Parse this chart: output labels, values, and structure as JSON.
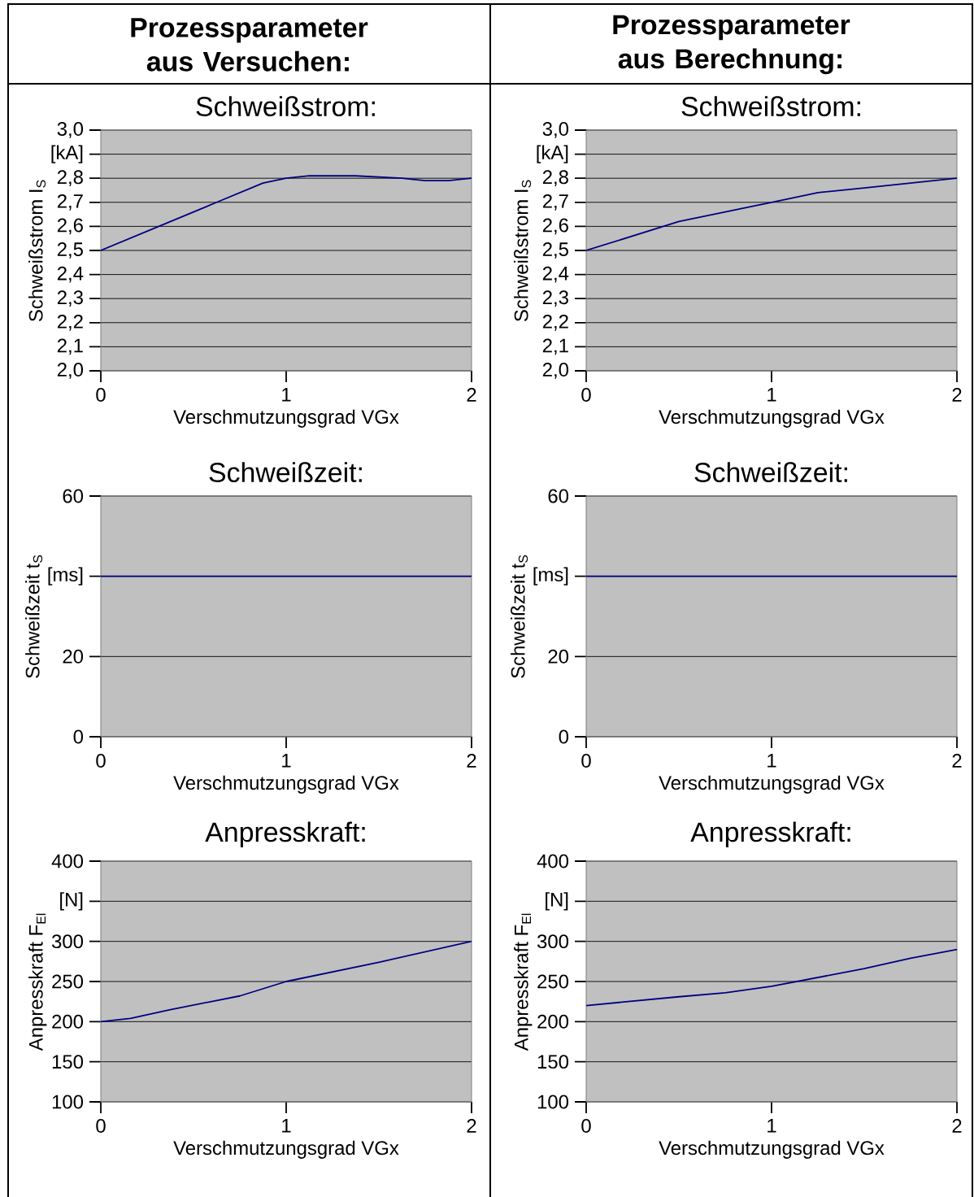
{
  "chart_data": [
    {
      "type": "line",
      "annotations": [
        "Prozessparameter aus Versuchen:"
      ],
      "title": "Schweißstrom:",
      "xlabel": "Verschmutzungsgrad VGx",
      "ylabel": "Schweißstrom I$_{S}$",
      "xlim": [
        0,
        2
      ],
      "xticks": [
        0,
        1,
        2
      ],
      "ylim": [
        2.0,
        3.0
      ],
      "yticks": [
        {
          "value": 2.0,
          "label": "2,0"
        },
        {
          "value": 2.1,
          "label": "2,1"
        },
        {
          "value": 2.2,
          "label": "2,2"
        },
        {
          "value": 2.3,
          "label": "2,3"
        },
        {
          "value": 2.4,
          "label": "2,4"
        },
        {
          "value": 2.5,
          "label": "2,5"
        },
        {
          "value": 2.6,
          "label": "2,6"
        },
        {
          "value": 2.7,
          "label": "2,7"
        },
        {
          "value": 2.8,
          "label": "2,8"
        },
        {
          "value": 2.9,
          "label": "[kA]"
        },
        {
          "value": 3.0,
          "label": "3,0"
        }
      ],
      "grid": "y",
      "color": "#000080",
      "x": [
        0,
        0.625,
        0.75,
        0.875,
        1,
        1.125,
        1.25,
        1.375,
        1.625,
        1.75,
        1.875,
        2
      ],
      "values": [
        2.5,
        2.7,
        2.74,
        2.78,
        2.8,
        2.81,
        2.81,
        2.81,
        2.8,
        2.79,
        2.79,
        2.8
      ]
    },
    {
      "type": "line",
      "annotations": [
        "Prozessparameter aus Berechnung:"
      ],
      "title": "Schweißstrom:",
      "xlabel": "Verschmutzungsgrad VGx",
      "ylabel": "Schweißstrom I$_{S}$",
      "xlim": [
        0,
        2
      ],
      "xticks": [
        0,
        1,
        2
      ],
      "ylim": [
        2.0,
        3.0
      ],
      "yticks": [
        {
          "value": 2.0,
          "label": "2,0"
        },
        {
          "value": 2.1,
          "label": "2,1"
        },
        {
          "value": 2.2,
          "label": "2,2"
        },
        {
          "value": 2.3,
          "label": "2,3"
        },
        {
          "value": 2.4,
          "label": "2,4"
        },
        {
          "value": 2.5,
          "label": "2,5"
        },
        {
          "value": 2.6,
          "label": "2,6"
        },
        {
          "value": 2.7,
          "label": "2,7"
        },
        {
          "value": 2.8,
          "label": "2,8"
        },
        {
          "value": 2.9,
          "label": "[kA]"
        },
        {
          "value": 3.0,
          "label": "3,0"
        }
      ],
      "grid": "y",
      "color": "#000080",
      "x": [
        0,
        0.25,
        0.5,
        0.75,
        1,
        1.25,
        1.5,
        1.75,
        2
      ],
      "values": [
        2.5,
        2.56,
        2.62,
        2.66,
        2.7,
        2.74,
        2.76,
        2.78,
        2.8
      ]
    },
    {
      "type": "line",
      "title": "Schweißzeit:",
      "xlabel": "Verschmutzungsgrad VGx",
      "ylabel": "Schweißzeit t$_{S}$",
      "xlim": [
        0,
        2
      ],
      "xticks": [
        0,
        1,
        2
      ],
      "ylim": [
        0,
        60
      ],
      "yticks": [
        0,
        20,
        {
          "value": 40,
          "label": "[ms]"
        },
        60
      ],
      "grid": "y",
      "color": "#000080",
      "x": [
        0,
        1,
        2
      ],
      "values": [
        40,
        40,
        40
      ]
    },
    {
      "type": "line",
      "title": "Schweißzeit:",
      "xlabel": "Verschmutzungsgrad VGx",
      "ylabel": "Schweißzeit t$_{S}$",
      "xlim": [
        0,
        2
      ],
      "xticks": [
        0,
        1,
        2
      ],
      "ylim": [
        0,
        60
      ],
      "yticks": [
        0,
        20,
        {
          "value": 40,
          "label": "[ms]"
        },
        60
      ],
      "grid": "y",
      "color": "#000080",
      "x": [
        0,
        1,
        2
      ],
      "values": [
        40,
        40,
        40
      ]
    },
    {
      "type": "line",
      "title": "Anpresskraft:",
      "xlabel": "Verschmutzungsgrad VGx",
      "ylabel": "Anpresskraft F$_{El}$",
      "xlim": [
        0,
        2
      ],
      "xticks": [
        0,
        1,
        2
      ],
      "ylim": [
        100,
        400
      ],
      "yticks": [
        100,
        150,
        200,
        250,
        300,
        {
          "value": 350,
          "label": "[N]"
        },
        400
      ],
      "grid": "y",
      "color": "#000080",
      "x": [
        0,
        0.16,
        0.375,
        0.75,
        1,
        1.5,
        2
      ],
      "values": [
        200,
        204,
        215,
        232,
        250,
        274,
        300
      ]
    },
    {
      "type": "line",
      "title": "Anpresskraft:",
      "xlabel": "Verschmutzungsgrad VGx",
      "ylabel": "Anpresskraft F$_{El}$",
      "xlim": [
        0,
        2
      ],
      "xticks": [
        0,
        1,
        2
      ],
      "ylim": [
        100,
        400
      ],
      "yticks": [
        100,
        150,
        200,
        250,
        300,
        {
          "value": 350,
          "label": "[N]"
        },
        400
      ],
      "grid": "y",
      "color": "#000080",
      "x": [
        0,
        0.5,
        0.75,
        1,
        1.25,
        1.5,
        1.75,
        2
      ],
      "values": [
        220,
        231,
        236,
        244,
        255,
        266,
        279,
        290
      ]
    }
  ]
}
